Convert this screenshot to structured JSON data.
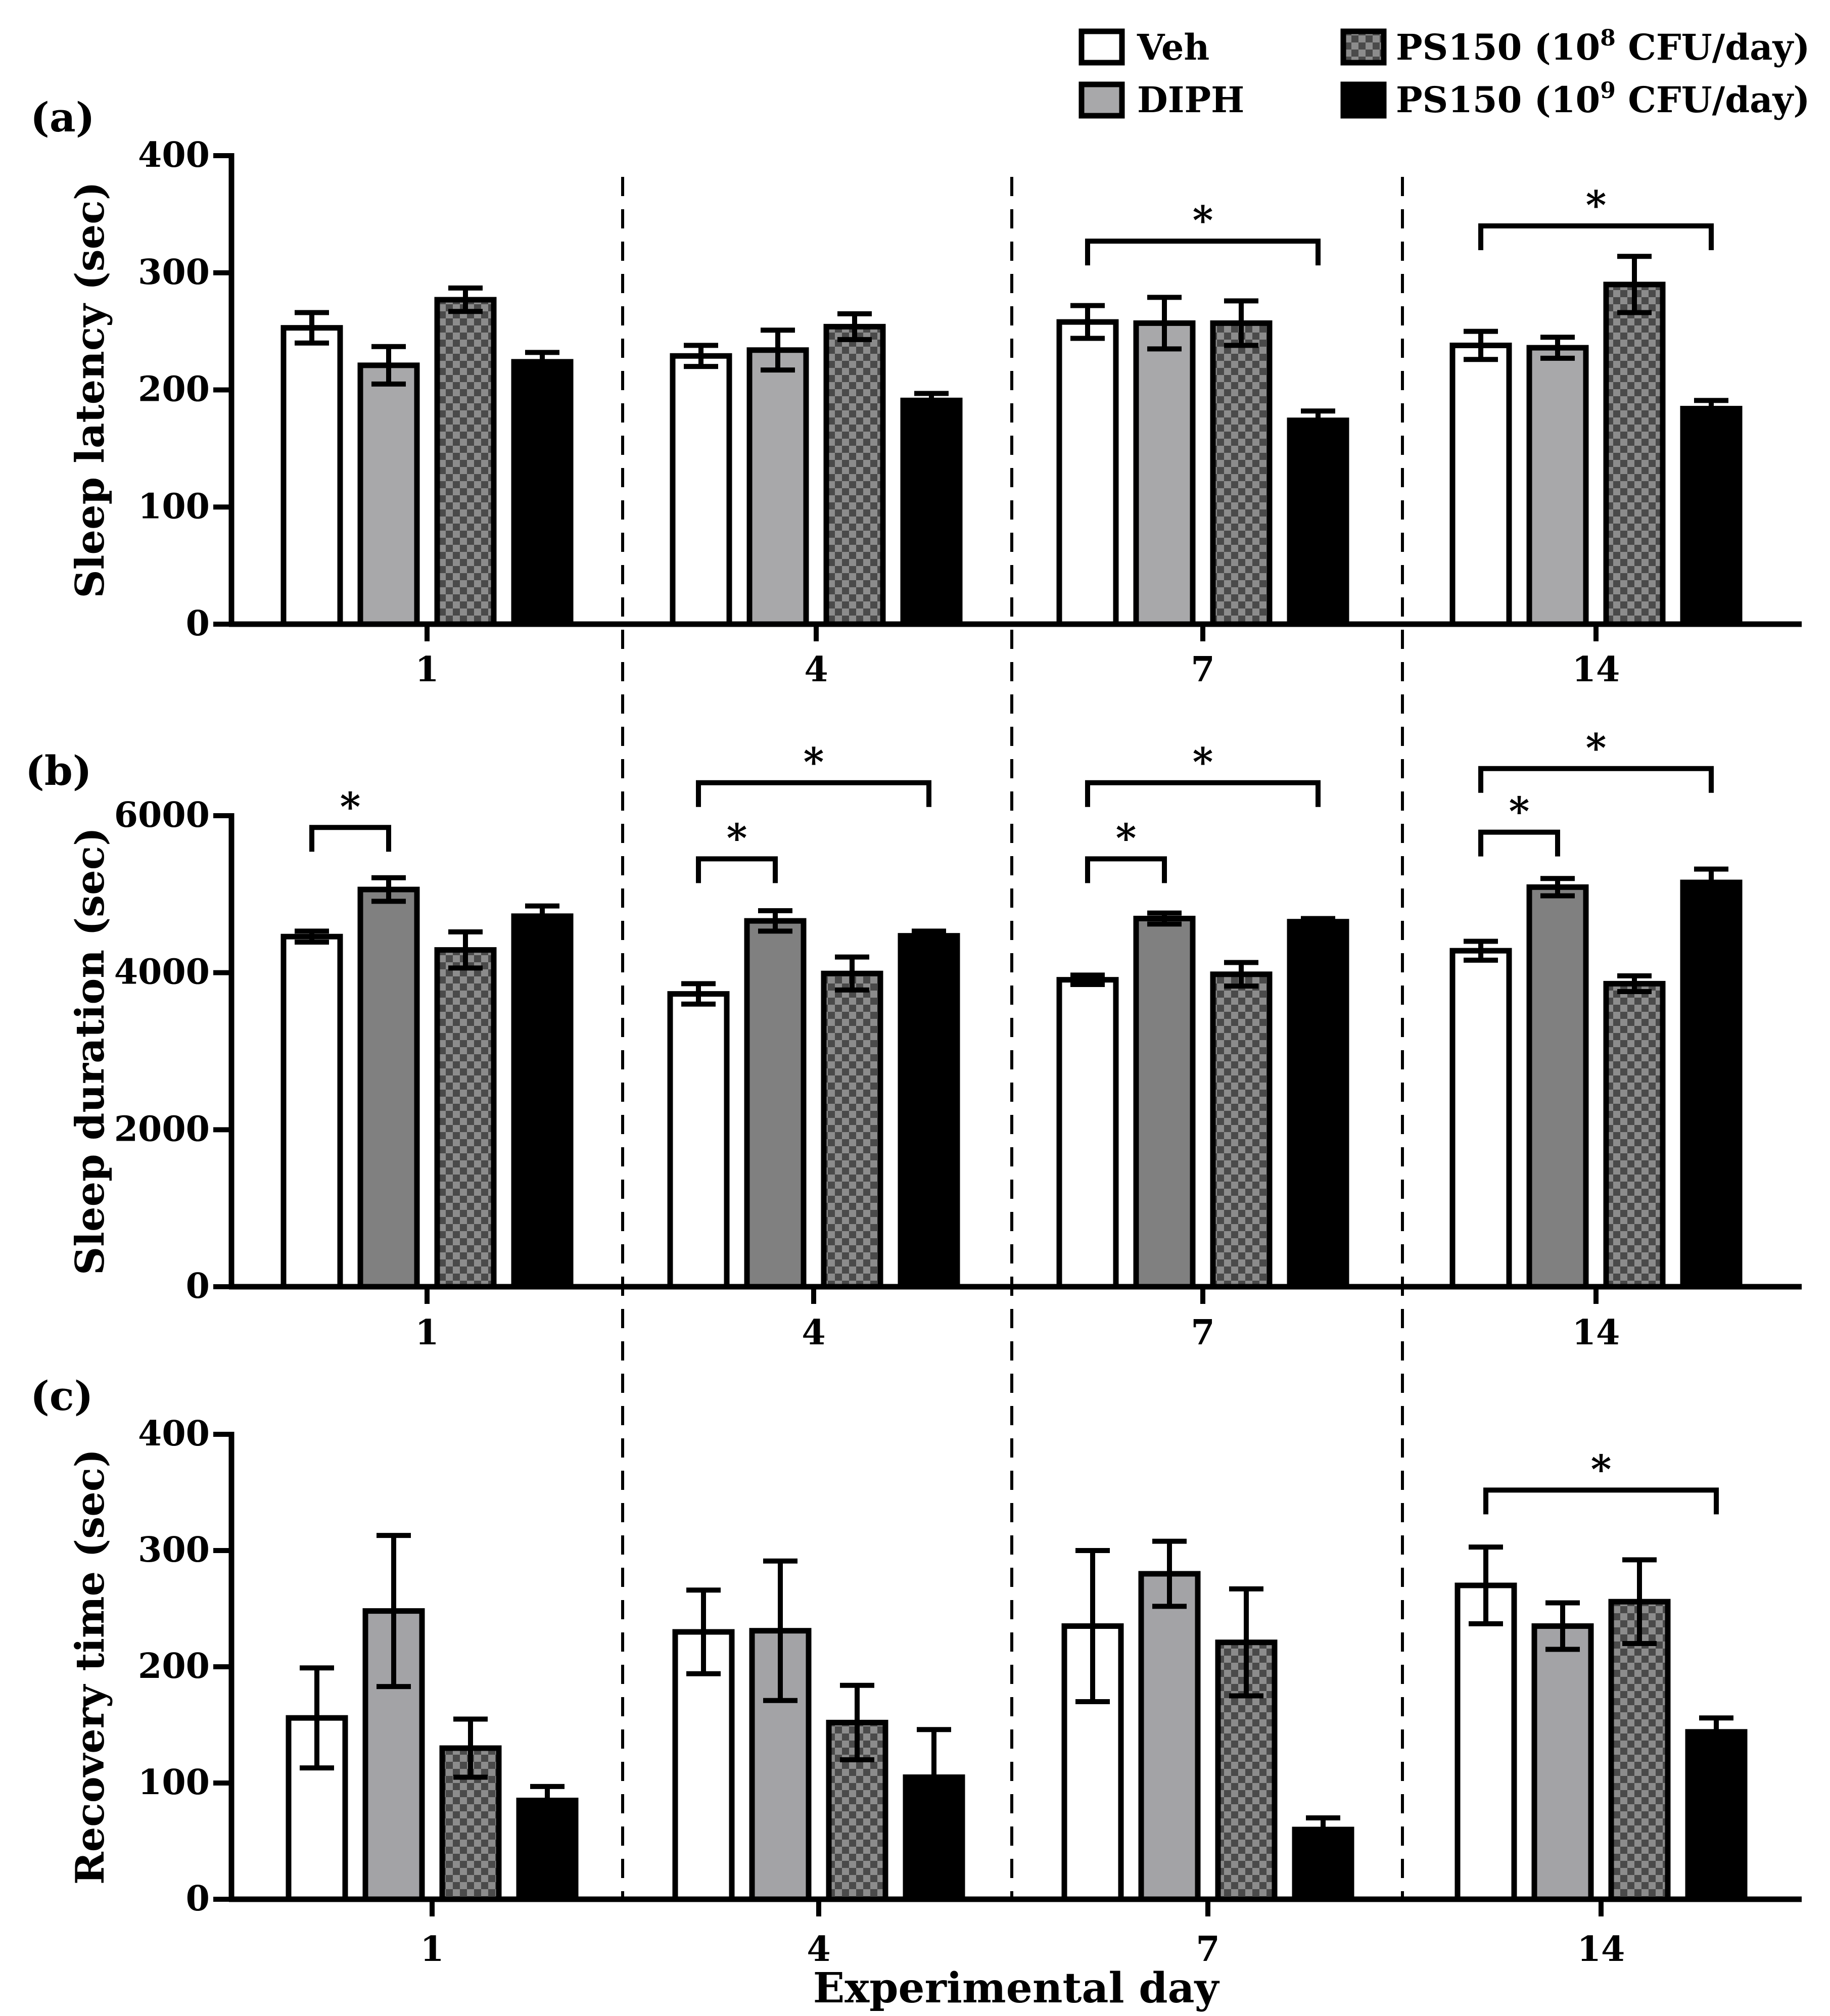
{
  "figure": {
    "xlabel": "Experimental day",
    "colors": {
      "veh": "#ffffff",
      "diph_a": "#a8a8aa",
      "diph_b": "#808080",
      "diph_c": "#a3a3a6",
      "ps150_8_checker_dark": "#4a4a4a",
      "ps150_8_checker_light": "#8c8c8c",
      "ps150_9": "#000000"
    }
  },
  "legend": {
    "items": [
      {
        "key": "veh",
        "label": "Veh",
        "fill": "white"
      },
      {
        "key": "diph",
        "label": "DIPH",
        "fill": "gray"
      },
      {
        "key": "ps150_8",
        "label": "PS150 (10",
        "sup": "8",
        "label_rest": " CFU/day)",
        "fill": "checker"
      },
      {
        "key": "ps150_9",
        "label": "PS150 (10",
        "sup": "9",
        "label_rest": " CFU/day)",
        "fill": "black"
      }
    ]
  },
  "chart_data": [
    {
      "panel": "(a)",
      "type": "bar",
      "ylabel": "Sleep latency (sec)",
      "xlabel": "",
      "categories": [
        "1",
        "4",
        "7",
        "14"
      ],
      "ylim": [
        0,
        400
      ],
      "yticks": [
        "0",
        "100",
        "200",
        "300",
        "400"
      ],
      "yticks_values": [
        0,
        100,
        200,
        300,
        400
      ],
      "series": [
        {
          "name": "Veh",
          "values": [
            253,
            229,
            258,
            238
          ],
          "errors": [
            13,
            9,
            14,
            12
          ]
        },
        {
          "name": "DIPH",
          "values": [
            221,
            234,
            257,
            236
          ],
          "errors": [
            16,
            17,
            22,
            9
          ]
        },
        {
          "name": "PS150 (10^8 CFU/day)",
          "values": [
            277,
            254,
            257,
            290
          ],
          "errors": [
            10,
            11,
            19,
            24
          ]
        },
        {
          "name": "PS150 (10^9 CFU/day)",
          "values": [
            224,
            191,
            174,
            184
          ],
          "errors": [
            8,
            6,
            8,
            7
          ]
        }
      ],
      "significance": [
        {
          "category": 2,
          "from_series": 0,
          "to_series": 3,
          "label": "*",
          "y": 327
        },
        {
          "category": 3,
          "from_series": 0,
          "to_series": 3,
          "label": "*",
          "y": 340
        }
      ]
    },
    {
      "panel": "(b)",
      "type": "bar",
      "ylabel": "Sleep duration (sec)",
      "xlabel": "",
      "categories": [
        "1",
        "4",
        "7",
        "14"
      ],
      "ylim": [
        0,
        6000
      ],
      "yticks": [
        "0",
        "2000",
        "4000",
        "6000"
      ],
      "yticks_values": [
        0,
        2000,
        4000,
        6000
      ],
      "series": [
        {
          "name": "Veh",
          "values": [
            4460,
            3730,
            3910,
            4280
          ],
          "errors": [
            70,
            130,
            60,
            120
          ]
        },
        {
          "name": "DIPH",
          "values": [
            5060,
            4660,
            4690,
            5090
          ],
          "errors": [
            150,
            130,
            70,
            110
          ]
        },
        {
          "name": "PS150 (10^8 CFU/day)",
          "values": [
            4290,
            3990,
            3980,
            3860
          ],
          "errors": [
            230,
            210,
            150,
            100
          ]
        },
        {
          "name": "PS150 (10^9 CFU/day)",
          "values": [
            4720,
            4470,
            4650,
            5150
          ],
          "errors": [
            130,
            60,
            40,
            170
          ]
        }
      ],
      "significance": [
        {
          "category": 0,
          "from_series": 0,
          "to_series": 1,
          "label": "*",
          "y": 5850
        },
        {
          "category": 1,
          "from_series": 0,
          "to_series": 1,
          "label": "*",
          "y": 5450
        },
        {
          "category": 1,
          "from_series": 0,
          "to_series": 3,
          "label": "*",
          "y": 6420
        },
        {
          "category": 2,
          "from_series": 0,
          "to_series": 1,
          "label": "*",
          "y": 5450
        },
        {
          "category": 2,
          "from_series": 0,
          "to_series": 3,
          "label": "*",
          "y": 6420
        },
        {
          "category": 3,
          "from_series": 0,
          "to_series": 1,
          "label": "*",
          "y": 5790
        },
        {
          "category": 3,
          "from_series": 0,
          "to_series": 3,
          "label": "*",
          "y": 6600
        }
      ]
    },
    {
      "panel": "(c)",
      "type": "bar",
      "ylabel": "Recovery time (sec)",
      "xlabel": "Experimental day",
      "categories": [
        "1",
        "4",
        "7",
        "14"
      ],
      "ylim": [
        0,
        400
      ],
      "yticks": [
        "0",
        "100",
        "200",
        "300",
        "400"
      ],
      "yticks_values": [
        0,
        100,
        200,
        300,
        400
      ],
      "series": [
        {
          "name": "Veh",
          "values": [
            156,
            230,
            235,
            270
          ],
          "errors": [
            43,
            36,
            65,
            33
          ]
        },
        {
          "name": "DIPH",
          "values": [
            248,
            231,
            280,
            235
          ],
          "errors": [
            65,
            60,
            28,
            20
          ]
        },
        {
          "name": "PS150 (10^8 CFU/day)",
          "values": [
            130,
            152,
            221,
            256
          ],
          "errors": [
            25,
            32,
            46,
            36
          ]
        },
        {
          "name": "PS150 (10^9 CFU/day)",
          "values": [
            85,
            105,
            60,
            144
          ],
          "errors": [
            12,
            41,
            10,
            12
          ]
        }
      ],
      "significance": [
        {
          "category": 3,
          "from_series": 0,
          "to_series": 3,
          "label": "*",
          "y": 352
        }
      ]
    }
  ]
}
